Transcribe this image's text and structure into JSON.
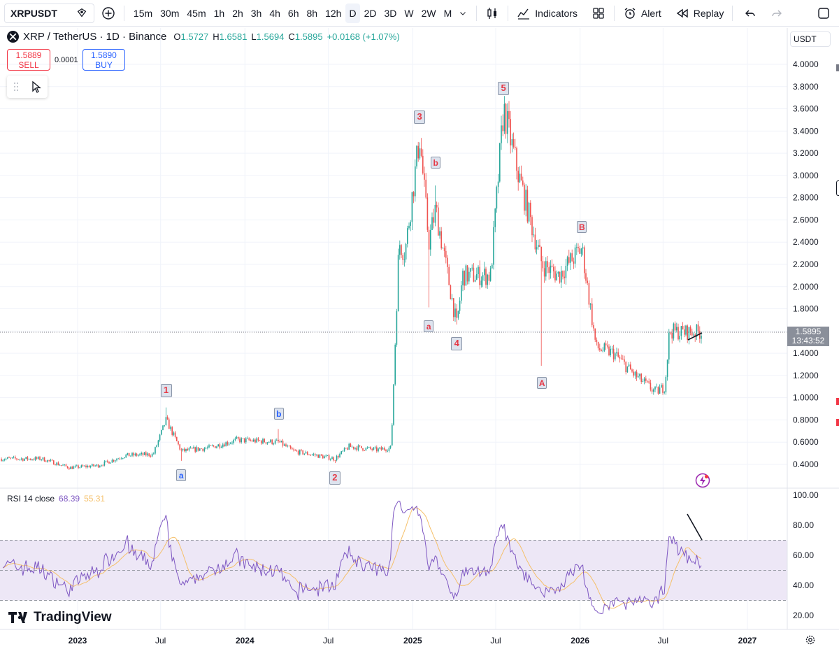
{
  "toolbar": {
    "symbol": "XRPUSDT",
    "timeframes": [
      "15m",
      "30m",
      "45m",
      "1h",
      "2h",
      "3h",
      "4h",
      "6h",
      "8h",
      "12h",
      "D",
      "2D",
      "3D",
      "W",
      "2W",
      "M"
    ],
    "active_timeframe": "D",
    "indicators_label": "Indicators",
    "alert_label": "Alert",
    "replay_label": "Replay"
  },
  "legend": {
    "title": "XRP / TetherUS · 1D · Binance",
    "o_label": "O",
    "o": "1.5727",
    "h_label": "H",
    "h": "1.6581",
    "l_label": "L",
    "l": "1.5694",
    "c_label": "C",
    "c": "1.5895",
    "change": "+0.0168 (+1.07%)"
  },
  "trade": {
    "sell_price": "1.5889",
    "sell_label": "SELL",
    "spread": "0.0001",
    "buy_price": "1.5890",
    "buy_label": "BUY"
  },
  "price_scale": {
    "currency": "USDT",
    "last_price": "1.5895",
    "countdown": "13:43:52"
  },
  "rsi": {
    "label": "RSI 14 close",
    "value": "68.39",
    "ma_value": "55.31",
    "ticks": [
      "100.00",
      "80.00",
      "60.00",
      "40.00",
      "20.00"
    ]
  },
  "colors": {
    "up": "#26a69a",
    "down": "#ef5350",
    "rsi_line": "#7e57c2",
    "rsi_ma": "#f5c06a",
    "rsi_band": "#ede7f6",
    "wave_red": "#e53946",
    "wave_blue": "#2962ff"
  },
  "logo": "TradingView",
  "chart_data": {
    "type": "candlestick",
    "x_ticks": [
      "2023",
      "Jul",
      "2024",
      "Jul",
      "2025",
      "Jul",
      "2026",
      "Jul",
      "2027"
    ],
    "y_ticks": [
      "4.0000",
      "3.8000",
      "3.6000",
      "3.4000",
      "3.2000",
      "3.0000",
      "2.8000",
      "2.6000",
      "2.4000",
      "2.2000",
      "2.0000",
      "1.8000",
      "1.6000",
      "1.4000",
      "1.2000",
      "1.0000",
      "0.8000",
      "0.6000",
      "0.4000"
    ],
    "ylim": [
      0.3,
      4.2
    ],
    "close_path": [
      [
        "2022-10",
        0.45
      ],
      [
        "2022-12",
        0.37
      ],
      [
        "2023-02",
        0.39
      ],
      [
        "2023-04",
        0.48
      ],
      [
        "2023-06",
        0.49
      ],
      [
        "2023-07-13",
        0.8
      ],
      [
        "2023-08",
        0.52
      ],
      [
        "2023-10",
        0.55
      ],
      [
        "2023-12",
        0.62
      ],
      [
        "2024-03",
        0.6
      ],
      [
        "2024-04",
        0.52
      ],
      [
        "2024-07",
        0.45
      ],
      [
        "2024-08",
        0.56
      ],
      [
        "2024-10",
        0.53
      ],
      [
        "2024-11",
        0.55
      ],
      [
        "2024-12-02",
        2.4
      ],
      [
        "2024-12-15",
        2.3
      ],
      [
        "2025-01-16",
        3.35
      ],
      [
        "2025-02-05",
        2.4
      ],
      [
        "2025-02-20",
        2.7
      ],
      [
        "2025-04-07",
        1.65
      ],
      [
        "2025-04-20",
        2.1
      ],
      [
        "2025-06-20",
        2.1
      ],
      [
        "2025-07-18",
        3.6
      ],
      [
        "2025-08-20",
        3.0
      ],
      [
        "2025-10-10",
        2.2
      ],
      [
        "2025-11-15",
        2.1
      ],
      [
        "2026-01-05",
        2.35
      ],
      [
        "2026-02-05",
        1.45
      ],
      [
        "2026-03-15",
        1.4
      ],
      [
        "2026-05-01",
        1.2
      ],
      [
        "2026-06-15",
        1.05
      ],
      [
        "2026-07-05",
        1.1
      ],
      [
        "2026-07-15",
        1.6
      ],
      [
        "2026-08-10",
        1.59
      ]
    ],
    "waves": [
      {
        "label": "1",
        "date": "2023-07-13",
        "price": 0.94
      },
      {
        "label": "a",
        "date": "2023-08",
        "price": 0.42,
        "minor": true
      },
      {
        "label": "b",
        "date": "2024-03",
        "price": 0.74,
        "minor": true
      },
      {
        "label": "2",
        "date": "2024-07",
        "price": 0.4
      },
      {
        "label": "3",
        "date": "2025-01-16",
        "price": 3.4
      },
      {
        "label": "a",
        "date": "2025-02-05",
        "price": 1.76
      },
      {
        "label": "b",
        "date": "2025-02-20",
        "price": 3.0
      },
      {
        "label": "4",
        "date": "2025-04-07",
        "price": 1.61
      },
      {
        "label": "5",
        "date": "2025-07-18",
        "price": 3.66
      },
      {
        "label": "A",
        "date": "2025-10-10",
        "price": 1.25
      },
      {
        "label": "B",
        "date": "2026-01-05",
        "price": 2.42
      }
    ],
    "rsi_levels": [
      70,
      50,
      30
    ],
    "rsi_ylim": [
      10,
      100
    ]
  }
}
